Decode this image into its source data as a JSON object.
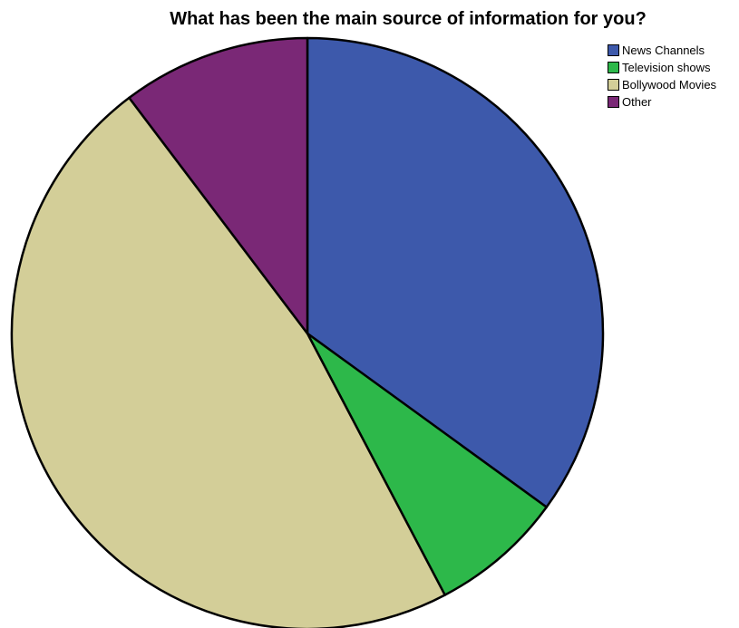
{
  "chart_data": {
    "type": "pie",
    "title": "What has been the main source of information for you?",
    "slices": [
      {
        "label": "News Channels",
        "value": 35.0,
        "color": "#3d59ab"
      },
      {
        "label": "Television shows",
        "value": 7.3,
        "color": "#2db84a"
      },
      {
        "label": "Bollywood Movies",
        "value": 47.4,
        "color": "#d3ce98"
      },
      {
        "label": "Other",
        "value": 10.3,
        "color": "#7a2876"
      }
    ],
    "start_angle": "12 o'clock",
    "direction": "clockwise",
    "legend_position": "top-right"
  }
}
